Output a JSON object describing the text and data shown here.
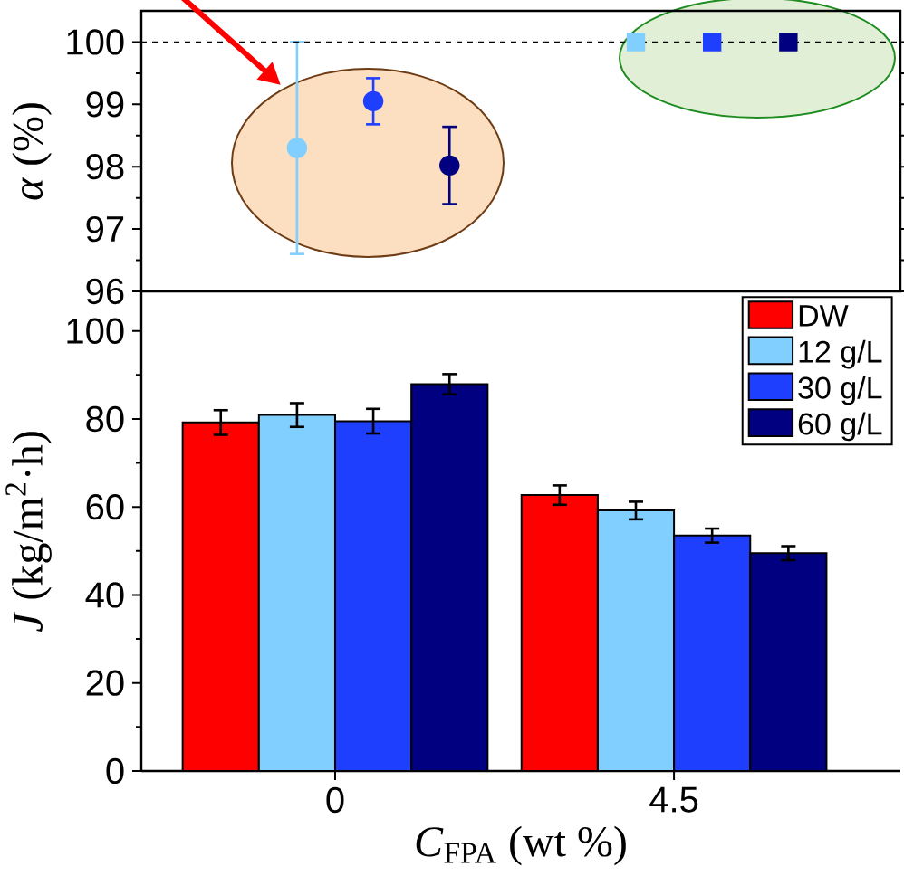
{
  "chart_data": [
    {
      "type": "scatter",
      "ylabel": "*α* (%)",
      "categories": [
        "0",
        "4.5"
      ],
      "ylim": [
        96,
        100.5
      ],
      "yticks": [
        96,
        97,
        98,
        99,
        100
      ],
      "tick_labels": "y",
      "legend": false,
      "ref_lines": [
        {
          "axis": "y",
          "value": 100,
          "line_style": "dashed",
          "color": "#000000"
        }
      ],
      "series": [
        {
          "color": "#80cfff",
          "marker": "circle",
          "values": [
            98.3,
            null
          ],
          "errors": [
            1.7,
            null
          ]
        },
        {
          "color": "#1f3fff",
          "marker": "circle",
          "values": [
            99.05,
            null
          ],
          "errors": [
            0.37,
            null
          ]
        },
        {
          "color": "#000080",
          "marker": "circle",
          "values": [
            98.02,
            null
          ],
          "errors": [
            0.62,
            null
          ]
        },
        {
          "color": "#80cfff",
          "marker": "square",
          "values": [
            null,
            100
          ]
        },
        {
          "color": "#1f3fff",
          "marker": "square",
          "values": [
            null,
            100
          ]
        },
        {
          "color": "#000080",
          "marker": "square",
          "values": [
            null,
            100
          ]
        }
      ]
    },
    {
      "type": "bar",
      "ylabel": "*J* (kg/m$^{2}$·h)",
      "xlabel": "*C*$_{FPA}$ (wt %)",
      "categories": [
        "0",
        "4.5"
      ],
      "ylim": [
        0,
        109
      ],
      "yticks": [
        0,
        20,
        40,
        60,
        80,
        100
      ],
      "legend": "top right",
      "series": [
        {
          "name": "DW",
          "color": "#ff0000",
          "values": [
            79.2,
            62.7
          ],
          "errors": [
            2.8,
            2.2
          ]
        },
        {
          "name": "12 g/L",
          "color": "#80cfff",
          "values": [
            80.9,
            59.2
          ],
          "errors": [
            2.7,
            2.0
          ]
        },
        {
          "name": "30 g/L",
          "color": "#1f3fff",
          "values": [
            79.5,
            53.5
          ],
          "errors": [
            2.8,
            1.6
          ]
        },
        {
          "name": "60 g/L",
          "color": "#000080",
          "values": [
            87.9,
            49.5
          ],
          "errors": [
            2.3,
            1.6
          ]
        }
      ]
    }
  ]
}
